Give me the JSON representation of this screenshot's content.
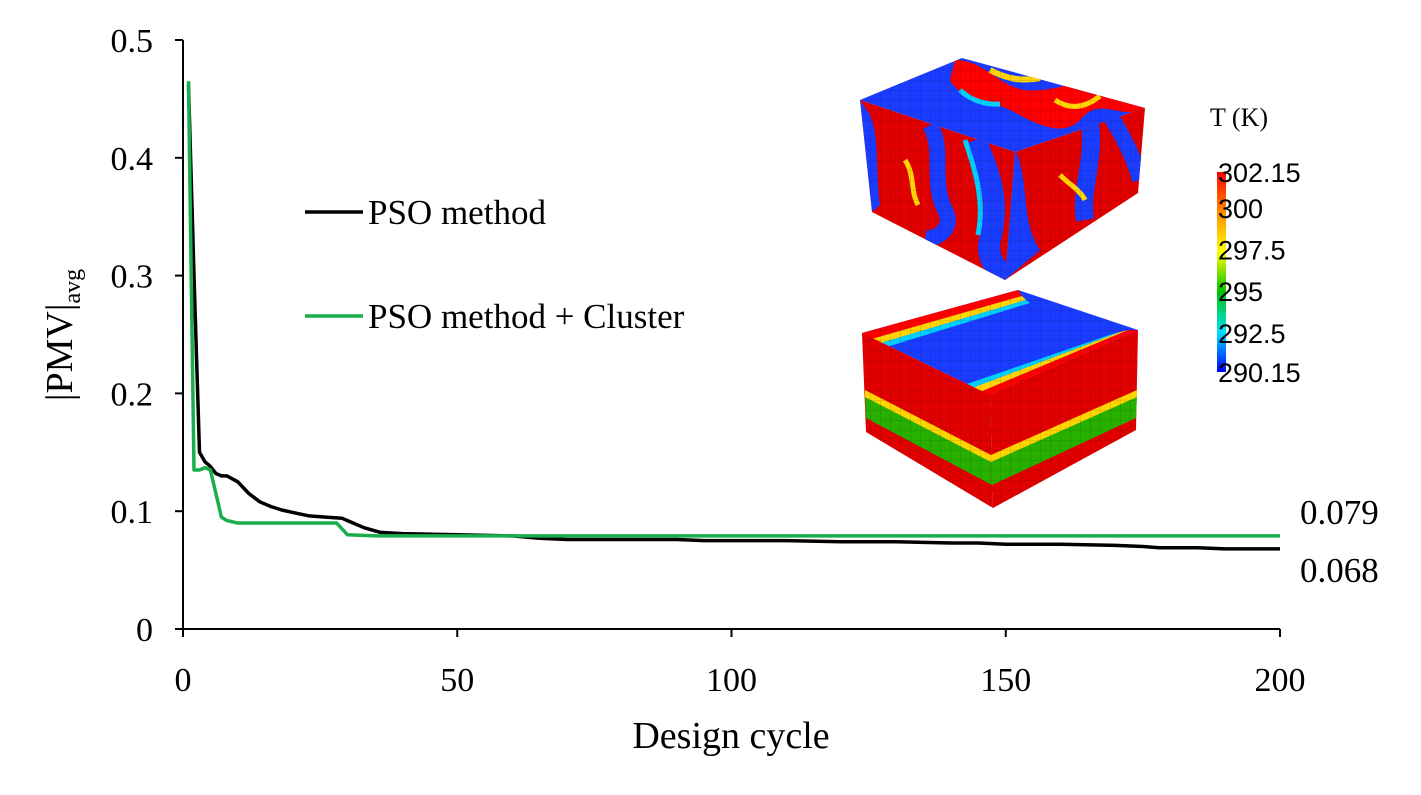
{
  "chart_data": {
    "type": "line",
    "xlabel": "Design cycle",
    "ylabel_main": "|PMV|",
    "ylabel_sub": "avg",
    "xlim": [
      0,
      200
    ],
    "ylim": [
      0,
      0.5
    ],
    "xticks": [
      "0",
      "50",
      "100",
      "150",
      "200"
    ],
    "yticks": [
      "0",
      "0.1",
      "0.2",
      "0.3",
      "0.4",
      "0.5"
    ],
    "grid": false,
    "legend_placement": "upper-left-center",
    "series": [
      {
        "name": "PSO method",
        "color": "#000000",
        "x": [
          1,
          2,
          3,
          4,
          5,
          6,
          7,
          8,
          10,
          12,
          14,
          16,
          18,
          20,
          23,
          26,
          29,
          30,
          33,
          36,
          40,
          50,
          60,
          65,
          70,
          80,
          90,
          95,
          100,
          110,
          120,
          130,
          140,
          145,
          150,
          160,
          170,
          175,
          178,
          185,
          190,
          200
        ],
        "y": [
          0.462,
          0.3,
          0.15,
          0.142,
          0.138,
          0.132,
          0.13,
          0.13,
          0.125,
          0.115,
          0.108,
          0.104,
          0.101,
          0.099,
          0.096,
          0.095,
          0.094,
          0.092,
          0.086,
          0.082,
          0.081,
          0.08,
          0.079,
          0.077,
          0.076,
          0.076,
          0.076,
          0.075,
          0.075,
          0.075,
          0.074,
          0.074,
          0.073,
          0.073,
          0.072,
          0.072,
          0.071,
          0.07,
          0.069,
          0.069,
          0.068,
          0.068
        ]
      },
      {
        "name": "PSO method + Cluster",
        "color": "#1aae4b",
        "x": [
          1,
          1.5,
          2,
          3,
          4,
          5,
          6,
          7,
          8,
          10,
          15,
          20,
          25,
          28,
          30,
          35,
          40,
          60,
          100,
          150,
          200
        ],
        "y": [
          0.465,
          0.3,
          0.135,
          0.135,
          0.137,
          0.135,
          0.115,
          0.095,
          0.092,
          0.09,
          0.09,
          0.09,
          0.09,
          0.09,
          0.08,
          0.079,
          0.079,
          0.079,
          0.079,
          0.079,
          0.079
        ]
      }
    ],
    "end_labels": [
      "0.079",
      "0.068"
    ],
    "inset": {
      "colorbar_title": "T (K)",
      "colorbar_ticks": [
        "302.15",
        "300",
        "297.5",
        "295",
        "292.5",
        "290.15"
      ],
      "colorbar_colors": [
        "#ff0000",
        "#ff8c00",
        "#ffff00",
        "#00c000",
        "#00e0ff",
        "#0000ff"
      ]
    }
  }
}
